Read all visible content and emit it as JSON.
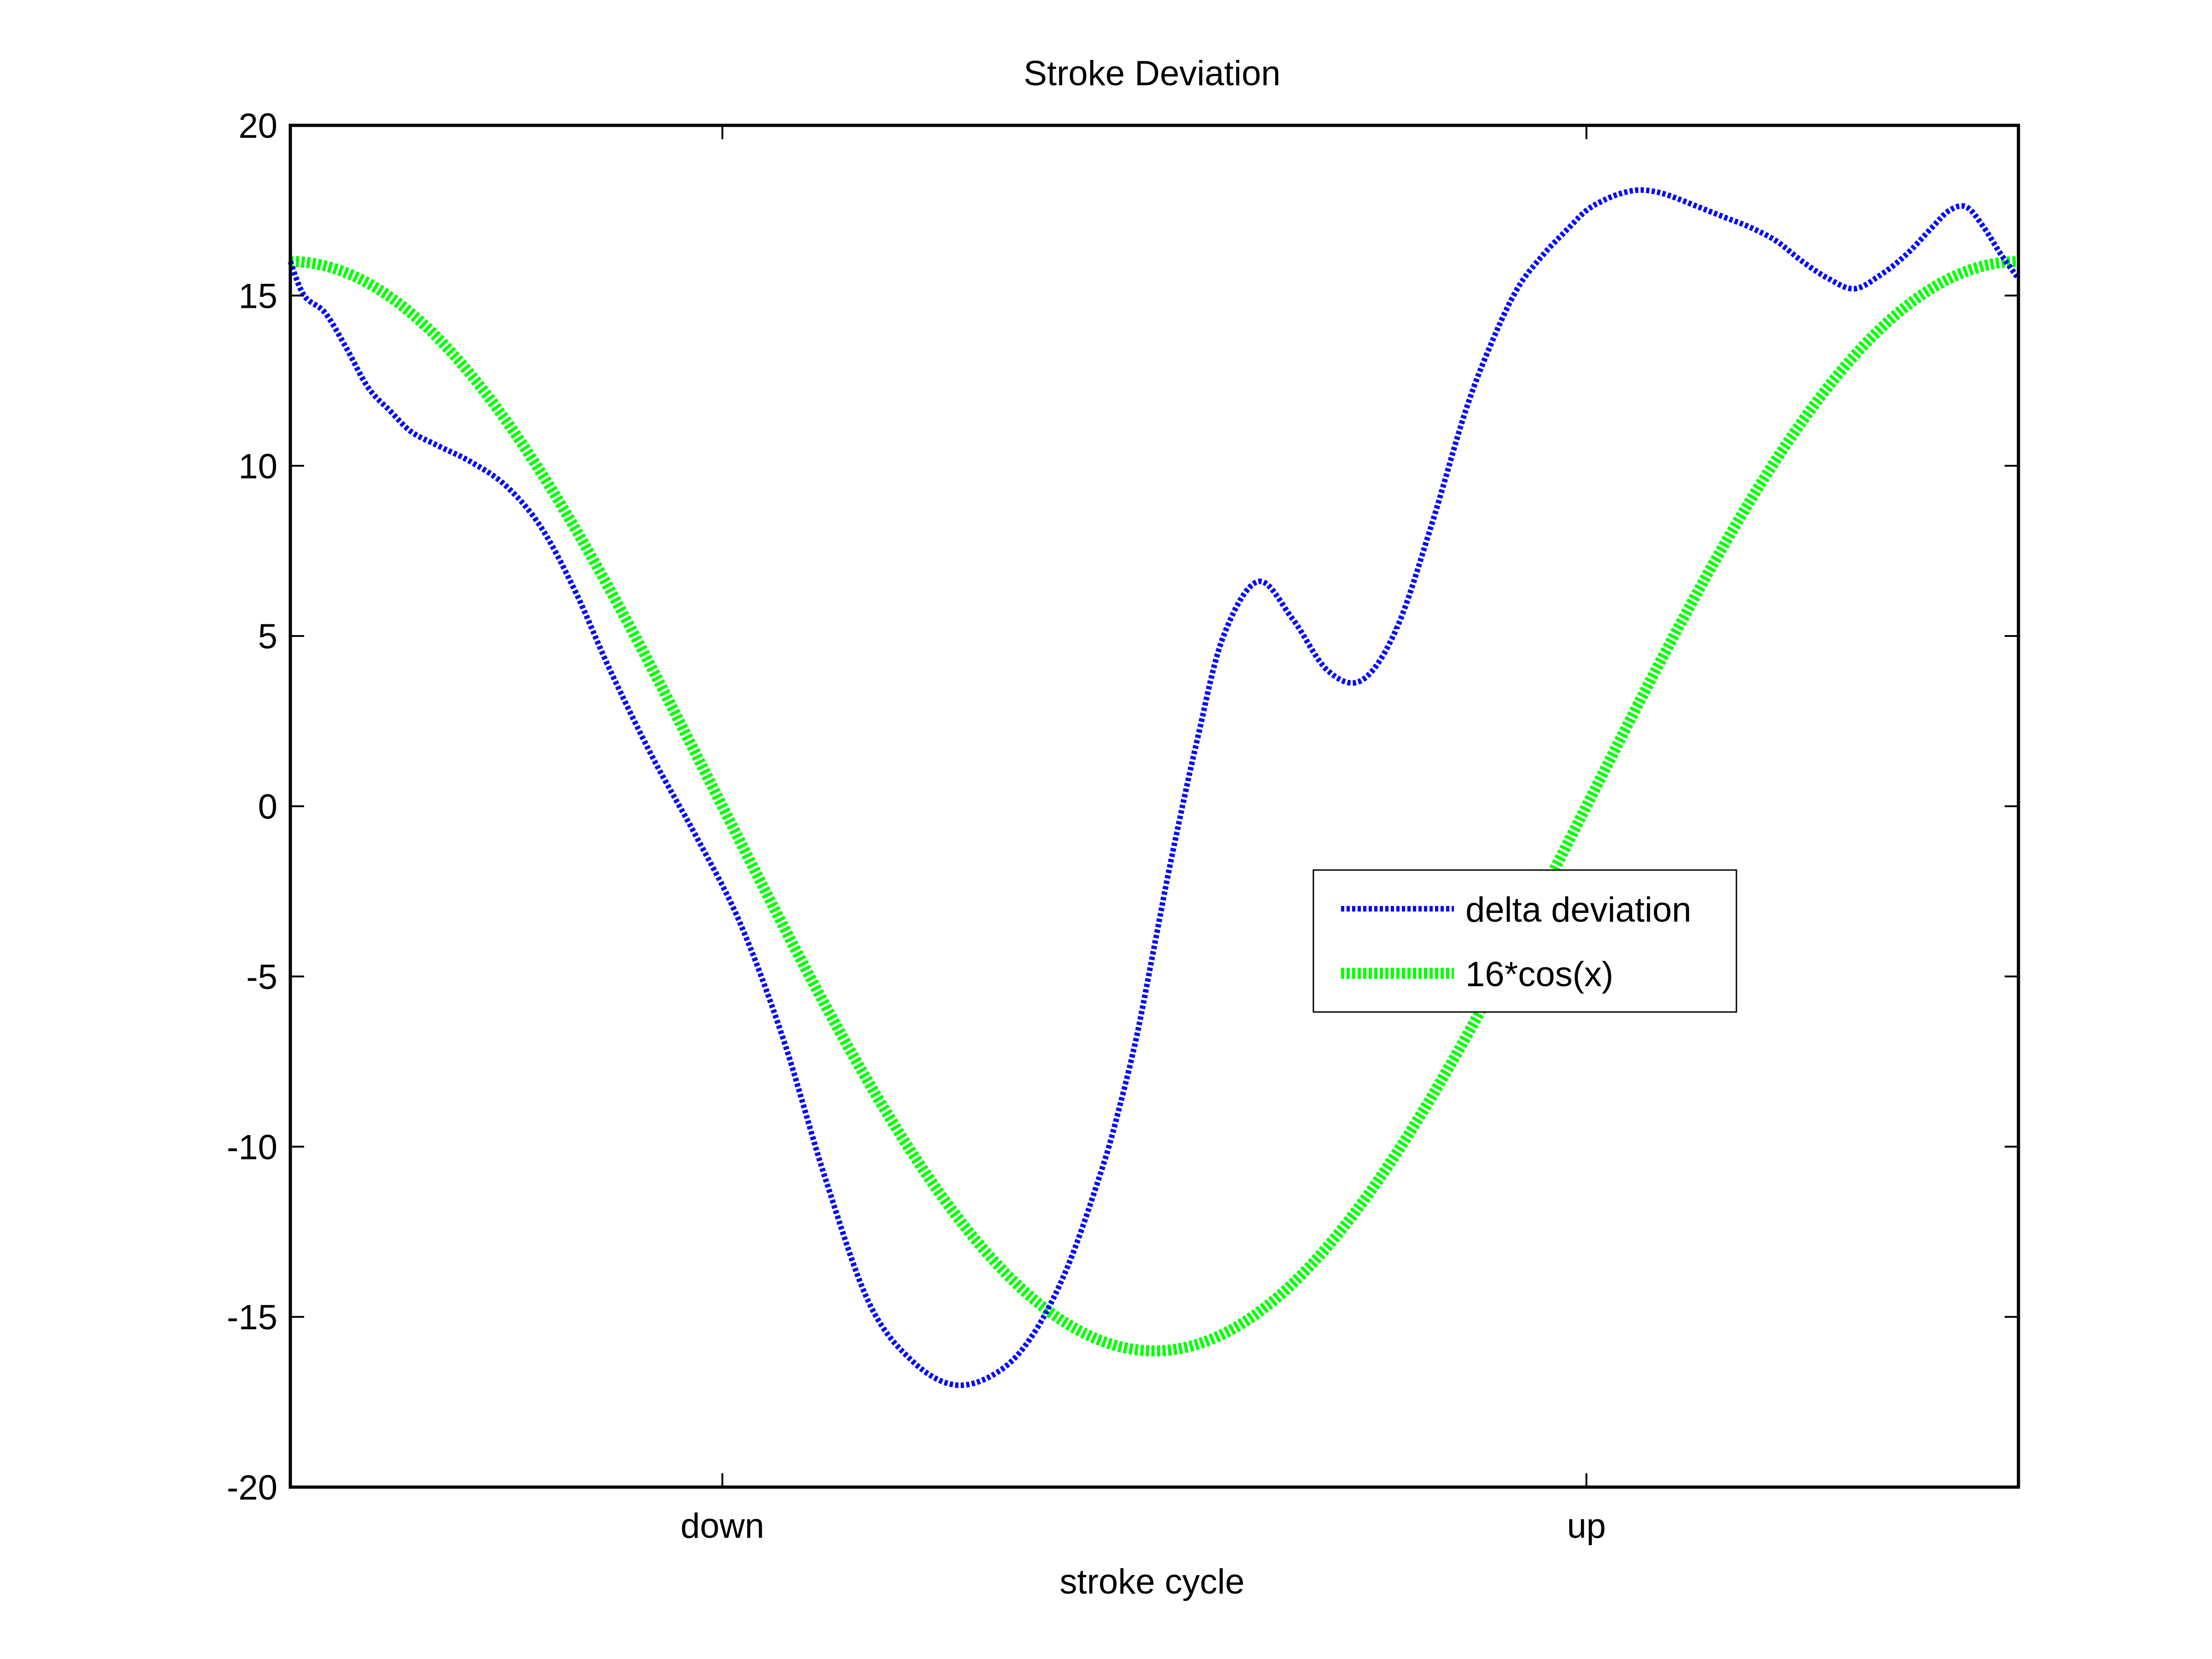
{
  "chart_data": {
    "type": "line",
    "title": "Stroke Deviation",
    "xlabel": "stroke cycle",
    "ylabel": "",
    "xlim": [
      0,
      1
    ],
    "ylim": [
      -20,
      20
    ],
    "yticks": [
      -20,
      -15,
      -10,
      -5,
      0,
      5,
      10,
      15,
      20
    ],
    "xticks": [
      {
        "x": 0.25,
        "label": "down"
      },
      {
        "x": 0.75,
        "label": "up"
      }
    ],
    "grid": false,
    "legend_position": "center-right",
    "series": [
      {
        "name": "delta deviation",
        "color": "#0000ff",
        "style": "dotted",
        "x": [
          0.0,
          0.008,
          0.02,
          0.032,
          0.045,
          0.058,
          0.07,
          0.085,
          0.105,
          0.125,
          0.145,
          0.165,
          0.185,
          0.21,
          0.235,
          0.26,
          0.285,
          0.31,
          0.335,
          0.36,
          0.385,
          0.41,
          0.43,
          0.45,
          0.47,
          0.48,
          0.49,
          0.5,
          0.51,
          0.525,
          0.54,
          0.56,
          0.58,
          0.6,
          0.62,
          0.64,
          0.66,
          0.68,
          0.695,
          0.71,
          0.725,
          0.74,
          0.75,
          0.76,
          0.77,
          0.78,
          0.79,
          0.8,
          0.815,
          0.83,
          0.845,
          0.86,
          0.875,
          0.89,
          0.905,
          0.92,
          0.935,
          0.95,
          0.96,
          0.97,
          0.98,
          0.99,
          1.0
        ],
        "y": [
          16.0,
          15.0,
          14.5,
          13.5,
          12.3,
          11.6,
          11.0,
          10.6,
          10.1,
          9.4,
          8.2,
          6.3,
          4.0,
          1.4,
          -0.9,
          -3.4,
          -6.8,
          -11.0,
          -14.6,
          -16.3,
          -17.0,
          -16.6,
          -15.5,
          -13.5,
          -10.6,
          -8.8,
          -6.7,
          -4.1,
          -1.5,
          2.0,
          5.0,
          6.6,
          5.5,
          4.0,
          3.7,
          5.2,
          8.2,
          11.6,
          13.6,
          15.2,
          16.2,
          17.0,
          17.5,
          17.8,
          18.0,
          18.1,
          18.05,
          17.9,
          17.6,
          17.3,
          17.0,
          16.6,
          16.0,
          15.5,
          15.2,
          15.6,
          16.2,
          17.0,
          17.5,
          17.6,
          17.0,
          16.2,
          15.5
        ]
      },
      {
        "name": "16*cos(x)",
        "color": "#00ff00",
        "style": "dotted",
        "function": "16*cos(2*pi*x)",
        "x_range": [
          0,
          1
        ],
        "samples": 200
      }
    ]
  }
}
